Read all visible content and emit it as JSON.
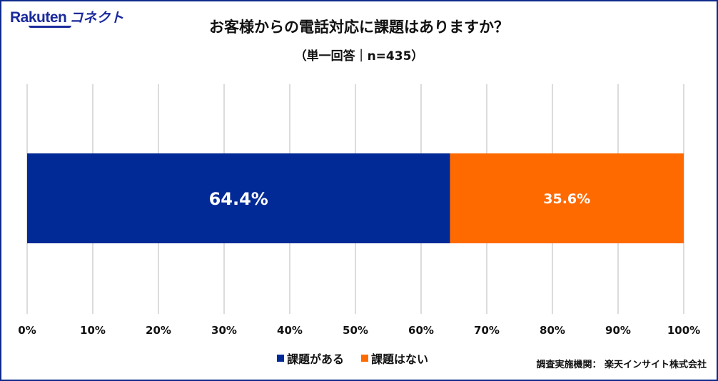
{
  "logo": {
    "brand": "Rakuten",
    "product": "コネクト"
  },
  "chart_data": {
    "type": "bar",
    "orientation": "horizontal-stacked-100",
    "title": "お客様からの電話対応に課題はありますか？",
    "subtitle": "（単一回答｜n=435）",
    "series": [
      {
        "name": "課題がある",
        "values": [
          64.4
        ],
        "label": "64.4%",
        "color": "#022a96"
      },
      {
        "name": "課題はない",
        "values": [
          35.6
        ],
        "label": "35.6%",
        "color": "#ff6a00"
      }
    ],
    "xlim": [
      0,
      100
    ],
    "xticks": [
      "0%",
      "10%",
      "20%",
      "30%",
      "40%",
      "50%",
      "60%",
      "70%",
      "80%",
      "90%",
      "100%"
    ],
    "grid": true,
    "legend": "bottom"
  },
  "source": "調査実施機関： 楽天インサイト株式会社"
}
